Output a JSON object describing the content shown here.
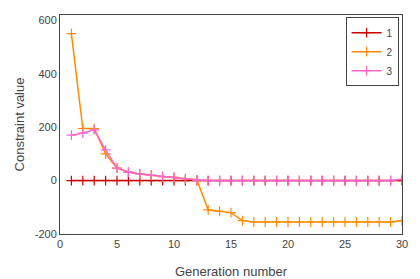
{
  "chart_data": {
    "type": "line",
    "x": [
      1,
      2,
      3,
      4,
      5,
      6,
      7,
      8,
      9,
      10,
      11,
      12,
      13,
      14,
      15,
      16,
      17,
      18,
      19,
      20,
      21,
      22,
      23,
      24,
      25,
      26,
      27,
      28,
      29,
      30
    ],
    "series": [
      {
        "name": "1",
        "color": "#cc0000",
        "values": [
          0,
          0,
          0,
          0,
          0,
          0,
          0,
          0,
          0,
          0,
          0,
          0,
          0,
          0,
          0,
          0,
          0,
          0,
          0,
          0,
          0,
          0,
          0,
          0,
          0,
          0,
          0,
          0,
          0,
          0
        ]
      },
      {
        "name": "2",
        "color": "#ff8c00",
        "values": [
          550,
          195,
          195,
          100,
          47,
          32,
          25,
          20,
          15,
          12,
          7,
          3,
          -110,
          -115,
          -120,
          -150,
          -155,
          -155,
          -155,
          -155,
          -155,
          -155,
          -155,
          -155,
          -155,
          -155,
          -155,
          -155,
          -155,
          -150
        ]
      },
      {
        "name": "3",
        "color": "#ff66cc",
        "values": [
          170,
          178,
          190,
          115,
          47,
          32,
          25,
          20,
          15,
          12,
          7,
          3,
          0,
          0,
          0,
          0,
          0,
          0,
          0,
          0,
          0,
          0,
          0,
          0,
          0,
          0,
          0,
          0,
          0,
          5
        ]
      }
    ],
    "xlabel": "Generation number",
    "ylabel": "Constraint value",
    "xlim": [
      0,
      30
    ],
    "ylim": [
      -200,
      620
    ],
    "xticks": [
      0,
      5,
      10,
      15,
      20,
      25,
      30
    ],
    "yticks": [
      -200,
      0,
      200,
      400,
      600
    ],
    "grid": false,
    "legend": "upper right",
    "marker": "+"
  }
}
